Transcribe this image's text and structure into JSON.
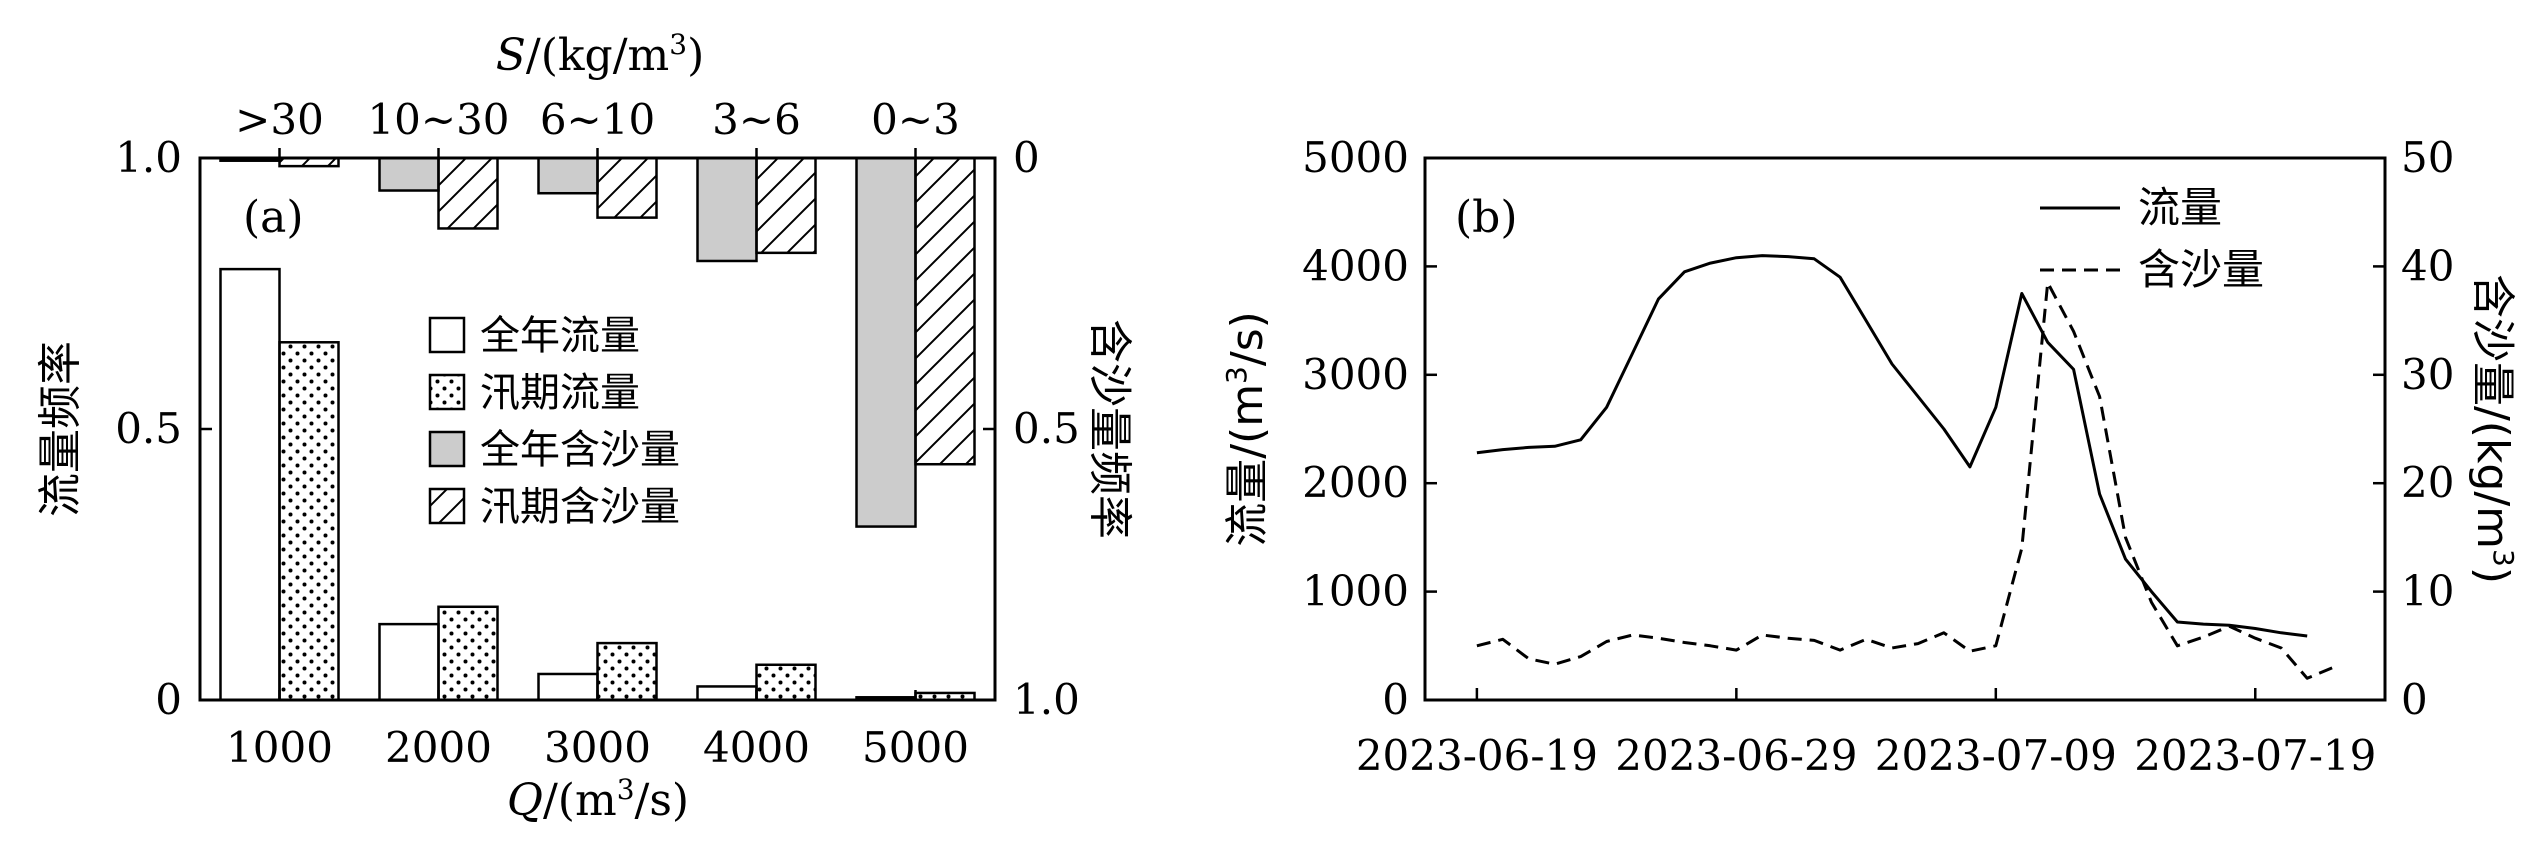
{
  "chart_data": [
    {
      "id": "a",
      "type": "bar",
      "panel_label": "(a)",
      "categories": [
        "1000",
        "2000",
        "3000",
        "4000",
        "5000"
      ],
      "top_categories": [
        ">30",
        "10~30",
        "6~10",
        "3~6",
        "0~3"
      ],
      "top_axis_label": {
        "sym": "S",
        "rest": "/(kg/m",
        "sup": "3",
        "end": ")"
      },
      "xlabel": {
        "sym": "Q",
        "rest": "/(m",
        "sup": "3",
        "end": "/s)"
      },
      "ylabel_left": "流量频率",
      "ylabel_right": "含沙量频率",
      "ylim_left": [
        0,
        1.0
      ],
      "ylim_right": [
        1.0,
        0
      ],
      "left_ticks": [
        "0",
        "0.5",
        "1.0"
      ],
      "right_ticks": [
        "0",
        "0.5",
        "1.0"
      ],
      "series": [
        {
          "name": "全年流量",
          "axis": "left",
          "values": [
            0.795,
            0.14,
            0.048,
            0.025,
            0.005
          ]
        },
        {
          "name": "汛期流量",
          "axis": "left",
          "values": [
            0.66,
            0.172,
            0.105,
            0.065,
            0.013
          ]
        },
        {
          "name": "全年含沙量",
          "axis": "right",
          "values": [
            0.005,
            0.06,
            0.065,
            0.19,
            0.68
          ]
        },
        {
          "name": "汛期含沙量",
          "axis": "right",
          "values": [
            0.015,
            0.13,
            0.11,
            0.175,
            0.565
          ]
        }
      ],
      "legend_position": "center"
    },
    {
      "id": "b",
      "type": "line",
      "panel_label": "(b)",
      "xlabel": "",
      "x_ticks": [
        "2023-06-19",
        "2023-06-29",
        "2023-07-09",
        "2023-07-19"
      ],
      "ylabel_left": {
        "pre": "流量/(m",
        "sup": "3",
        "post": "/s)"
      },
      "ylabel_right": {
        "pre": "含沙量/(kg/m",
        "sup": "3",
        "post": ")"
      },
      "ylim_left": [
        0,
        5000
      ],
      "ylim_right": [
        0,
        50
      ],
      "left_ticks": [
        "0",
        "1000",
        "2000",
        "3000",
        "4000",
        "5000"
      ],
      "right_ticks": [
        "0",
        "10",
        "20",
        "30",
        "40",
        "50"
      ],
      "legend_position": "top-right",
      "series": [
        {
          "name": "流量",
          "axis": "left",
          "style": "solid",
          "points": [
            [
              "2023-06-19",
              2280
            ],
            [
              "2023-06-20",
              2310
            ],
            [
              "2023-06-21",
              2330
            ],
            [
              "2023-06-22",
              2340
            ],
            [
              "2023-06-23",
              2400
            ],
            [
              "2023-06-24",
              2700
            ],
            [
              "2023-06-25",
              3200
            ],
            [
              "2023-06-26",
              3700
            ],
            [
              "2023-06-27",
              3950
            ],
            [
              "2023-06-28",
              4030
            ],
            [
              "2023-06-29",
              4080
            ],
            [
              "2023-06-30",
              4100
            ],
            [
              "2023-07-01",
              4090
            ],
            [
              "2023-07-02",
              4070
            ],
            [
              "2023-07-03",
              3900
            ],
            [
              "2023-07-04",
              3500
            ],
            [
              "2023-07-05",
              3100
            ],
            [
              "2023-07-06",
              2800
            ],
            [
              "2023-07-07",
              2500
            ],
            [
              "2023-07-08",
              2150
            ],
            [
              "2023-07-09",
              2700
            ],
            [
              "2023-07-10",
              3750
            ],
            [
              "2023-07-11",
              3300
            ],
            [
              "2023-07-12",
              3050
            ],
            [
              "2023-07-13",
              1900
            ],
            [
              "2023-07-14",
              1300
            ],
            [
              "2023-07-15",
              1000
            ],
            [
              "2023-07-16",
              720
            ],
            [
              "2023-07-17",
              700
            ],
            [
              "2023-07-18",
              690
            ],
            [
              "2023-07-19",
              660
            ],
            [
              "2023-07-20",
              620
            ],
            [
              "2023-07-21",
              590
            ]
          ]
        },
        {
          "name": "含沙量",
          "axis": "right",
          "style": "dashed",
          "points": [
            [
              "2023-06-19",
              5.0
            ],
            [
              "2023-06-20",
              5.6
            ],
            [
              "2023-06-21",
              3.8
            ],
            [
              "2023-06-22",
              3.3
            ],
            [
              "2023-06-23",
              4.0
            ],
            [
              "2023-06-24",
              5.4
            ],
            [
              "2023-06-25",
              6.0
            ],
            [
              "2023-06-26",
              5.7
            ],
            [
              "2023-06-27",
              5.3
            ],
            [
              "2023-06-28",
              5.0
            ],
            [
              "2023-06-29",
              4.6
            ],
            [
              "2023-06-30",
              6.0
            ],
            [
              "2023-07-01",
              5.7
            ],
            [
              "2023-07-02",
              5.5
            ],
            [
              "2023-07-03",
              4.6
            ],
            [
              "2023-07-04",
              5.6
            ],
            [
              "2023-07-05",
              4.8
            ],
            [
              "2023-07-06",
              5.2
            ],
            [
              "2023-07-07",
              6.2
            ],
            [
              "2023-07-08",
              4.5
            ],
            [
              "2023-07-09",
              5.0
            ],
            [
              "2023-07-10",
              14.0
            ],
            [
              "2023-07-11",
              38.5
            ],
            [
              "2023-07-12",
              34.0
            ],
            [
              "2023-07-13",
              28.0
            ],
            [
              "2023-07-14",
              15.0
            ],
            [
              "2023-07-15",
              9.0
            ],
            [
              "2023-07-16",
              5.0
            ],
            [
              "2023-07-17",
              5.8
            ],
            [
              "2023-07-18",
              6.8
            ],
            [
              "2023-07-19",
              5.7
            ],
            [
              "2023-07-20",
              4.8
            ],
            [
              "2023-07-21",
              2.0
            ],
            [
              "2023-07-22",
              3.0
            ]
          ]
        }
      ]
    }
  ]
}
